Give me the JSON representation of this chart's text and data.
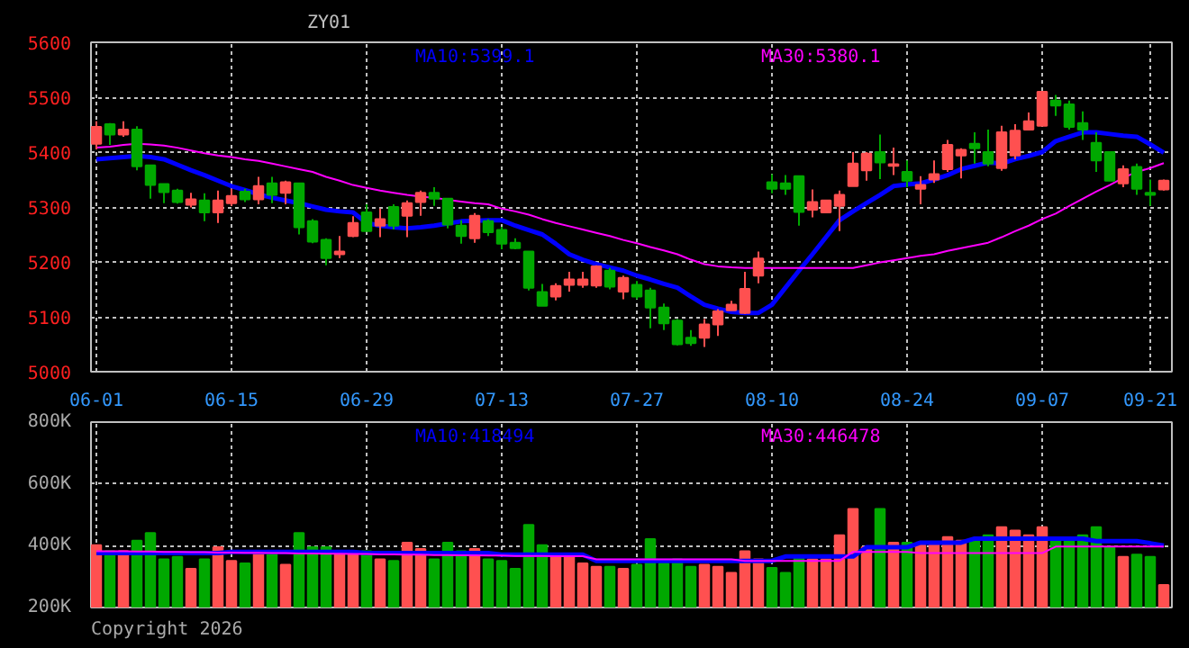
{
  "chart_data": [
    {
      "type": "candlestick",
      "title": "ZY01",
      "categories": [
        "06-01",
        null,
        null,
        null,
        null,
        null,
        null,
        null,
        null,
        null,
        "06-15",
        null,
        null,
        null,
        null,
        null,
        null,
        null,
        null,
        null,
        "06-29",
        null,
        null,
        null,
        null,
        null,
        null,
        null,
        null,
        null,
        "07-13",
        null,
        null,
        null,
        null,
        null,
        null,
        null,
        null,
        null,
        "07-27",
        null,
        null,
        null,
        null,
        null,
        null,
        null,
        null,
        null,
        "08-10",
        null,
        null,
        null,
        null,
        null,
        null,
        null,
        null,
        null,
        "08-24",
        null,
        null,
        null,
        null,
        null,
        null,
        null,
        null,
        null,
        "09-07",
        null,
        null,
        null,
        null,
        null,
        null,
        null,
        "09-21",
        null
      ],
      "ohlc": [
        [
          5415,
          5456,
          5405,
          5446
        ],
        [
          5451,
          5453,
          5413,
          5432
        ],
        [
          5432,
          5456,
          5428,
          5441
        ],
        [
          5441,
          5447,
          5367,
          5374
        ],
        [
          5376,
          5376,
          5315,
          5340
        ],
        [
          5342,
          5342,
          5307,
          5327
        ],
        [
          5330,
          5333,
          5306,
          5309
        ],
        [
          5304,
          5326,
          5299,
          5314
        ],
        [
          5312,
          5325,
          5274,
          5290
        ],
        [
          5290,
          5330,
          5271,
          5312
        ],
        [
          5307,
          5333,
          5302,
          5320
        ],
        [
          5328,
          5333,
          5309,
          5314
        ],
        [
          5314,
          5355,
          5305,
          5338
        ],
        [
          5343,
          5355,
          5307,
          5322
        ],
        [
          5326,
          5348,
          5305,
          5345
        ],
        [
          5343,
          5343,
          5250,
          5263
        ],
        [
          5274,
          5278,
          5234,
          5237
        ],
        [
          5240,
          5243,
          5194,
          5207
        ],
        [
          5214,
          5247,
          5207,
          5219
        ],
        [
          5247,
          5283,
          5245,
          5271
        ],
        [
          5290,
          5305,
          5256,
          5256
        ],
        [
          5266,
          5297,
          5245,
          5278
        ],
        [
          5300,
          5305,
          5259,
          5266
        ],
        [
          5284,
          5312,
          5245,
          5307
        ],
        [
          5309,
          5330,
          5284,
          5326
        ],
        [
          5326,
          5336,
          5302,
          5315
        ],
        [
          5315,
          5315,
          5261,
          5268
        ],
        [
          5266,
          5276,
          5233,
          5247
        ],
        [
          5243,
          5289,
          5235,
          5284
        ],
        [
          5274,
          5278,
          5247,
          5254
        ],
        [
          5258,
          5264,
          5223,
          5233
        ],
        [
          5235,
          5243,
          5223,
          5225
        ],
        [
          5219,
          5219,
          5148,
          5153
        ],
        [
          5145,
          5160,
          5120,
          5120
        ],
        [
          5137,
          5161,
          5130,
          5156
        ],
        [
          5158,
          5182,
          5146,
          5168
        ],
        [
          5158,
          5182,
          5153,
          5168
        ],
        [
          5157,
          5194,
          5153,
          5192
        ],
        [
          5184,
          5189,
          5150,
          5155
        ],
        [
          5146,
          5175,
          5132,
          5171
        ],
        [
          5158,
          5165,
          5132,
          5137
        ],
        [
          5148,
          5153,
          5079,
          5117
        ],
        [
          5117,
          5124,
          5076,
          5088
        ],
        [
          5093,
          5096,
          5048,
          5050
        ],
        [
          5062,
          5076,
          5047,
          5052
        ],
        [
          5062,
          5096,
          5045,
          5086
        ],
        [
          5086,
          5114,
          5065,
          5110
        ],
        [
          5112,
          5129,
          5112,
          5122
        ],
        [
          5107,
          5182,
          5105,
          5151
        ],
        [
          5175,
          5219,
          5161,
          5206
        ],
        [
          5345,
          5360,
          5325,
          5333
        ],
        [
          5343,
          5358,
          5322,
          5333
        ],
        [
          5356,
          5356,
          5266,
          5291
        ],
        [
          5295,
          5332,
          5281,
          5309
        ],
        [
          5290,
          5312,
          5289,
          5312
        ],
        [
          5302,
          5330,
          5256,
          5322
        ],
        [
          5338,
          5400,
          5338,
          5379
        ],
        [
          5367,
          5400,
          5348,
          5397
        ],
        [
          5400,
          5432,
          5351,
          5381
        ],
        [
          5375,
          5408,
          5358,
          5378
        ],
        [
          5364,
          5385,
          5336,
          5348
        ],
        [
          5333,
          5356,
          5305,
          5340
        ],
        [
          5350,
          5385,
          5344,
          5360
        ],
        [
          5369,
          5422,
          5364,
          5413
        ],
        [
          5394,
          5407,
          5352,
          5404
        ],
        [
          5415,
          5436,
          5379,
          5407
        ],
        [
          5400,
          5441,
          5374,
          5379
        ],
        [
          5371,
          5448,
          5366,
          5436
        ],
        [
          5394,
          5451,
          5387,
          5439
        ],
        [
          5441,
          5472,
          5441,
          5456
        ],
        [
          5448,
          5510,
          5448,
          5510
        ],
        [
          5494,
          5504,
          5466,
          5485
        ],
        [
          5487,
          5494,
          5441,
          5446
        ],
        [
          5453,
          5474,
          5422,
          5441
        ],
        [
          5417,
          5436,
          5364,
          5385
        ],
        [
          5400,
          5400,
          5348,
          5348
        ],
        [
          5343,
          5376,
          5336,
          5369
        ],
        [
          5373,
          5379,
          5322,
          5333
        ],
        [
          5326,
          5350,
          5302,
          5322
        ],
        [
          5332,
          5350,
          5330,
          5348
        ]
      ],
      "colors": [
        "#ff5050",
        "#00a800",
        "#ff5050",
        "#00a800",
        "#00a800",
        "#00a800",
        "#00a800",
        "#ff5050",
        "#00a800",
        "#ff5050",
        "#ff5050",
        "#00a800",
        "#ff5050",
        "#00a800",
        "#ff5050",
        "#00a800",
        "#00a800",
        "#00a800",
        "#ff5050",
        "#ff5050",
        "#00a800",
        "#ff5050",
        "#00a800",
        "#ff5050",
        "#ff5050",
        "#00a800",
        "#00a800",
        "#00a800",
        "#ff5050",
        "#00a800",
        "#00a800",
        "#00a800",
        "#00a800",
        "#00a800",
        "#ff5050",
        "#ff5050",
        "#ff5050",
        "#ff5050",
        "#00a800",
        "#ff5050",
        "#00a800",
        "#00a800",
        "#00a800",
        "#00a800",
        "#00a800",
        "#ff5050",
        "#ff5050",
        "#ff5050",
        "#ff5050",
        "#ff5050",
        "#00a800",
        "#00a800",
        "#00a800",
        "#ff5050",
        "#ff5050",
        "#ff5050",
        "#ff5050",
        "#ff5050",
        "#00a800",
        "#ff5050",
        "#00a800",
        "#ff5050",
        "#ff5050",
        "#ff5050",
        "#ff5050",
        "#00a800",
        "#00a800",
        "#ff5050",
        "#ff5050",
        "#ff5050",
        "#ff5050",
        "#00a800",
        "#00a800",
        "#00a800",
        "#00a800",
        "#00a800",
        "#ff5050",
        "#00a800",
        "#00a800",
        "#ff5050"
      ],
      "series": [
        {
          "type": "line",
          "name": "MA10:5399.1",
          "color": "#0000ff",
          "values": [
            5387,
            5389,
            5391,
            5393,
            5391,
            5387,
            5377,
            5367,
            5358,
            5348,
            5338,
            5331,
            5323,
            5317,
            5312,
            5307,
            5301,
            5295,
            5292,
            5290,
            5271,
            5266,
            5263,
            5261,
            5263,
            5266,
            5270,
            5274,
            5275,
            5276,
            5276,
            5266,
            5258,
            5250,
            5233,
            5214,
            5204,
            5196,
            5190,
            5184,
            5175,
            5168,
            5160,
            5153,
            5137,
            5122,
            5115,
            5109,
            5107,
            5107,
            5122,
            5153,
            5184,
            5214,
            5245,
            5276,
            5292,
            5307,
            5322,
            5338,
            5341,
            5343,
            5350,
            5358,
            5369,
            5375,
            5381,
            5379,
            5387,
            5393,
            5400,
            5420,
            5428,
            5436,
            5436,
            5433,
            5430,
            5428,
            5414,
            5399
          ]
        },
        {
          "type": "line",
          "name": "MA30:5380.1",
          "color": "#ff00ff",
          "values": [
            5408,
            5410,
            5413,
            5415,
            5414,
            5412,
            5408,
            5403,
            5398,
            5394,
            5391,
            5387,
            5384,
            5379,
            5374,
            5369,
            5364,
            5355,
            5348,
            5340,
            5335,
            5330,
            5326,
            5322,
            5319,
            5317,
            5313,
            5310,
            5307,
            5305,
            5297,
            5292,
            5286,
            5278,
            5271,
            5265,
            5259,
            5253,
            5247,
            5240,
            5234,
            5227,
            5221,
            5214,
            5204,
            5196,
            5192,
            5190,
            5189,
            5189,
            5189,
            5189,
            5189,
            5189,
            5189,
            5189,
            5189,
            5194,
            5199,
            5203,
            5207,
            5211,
            5214,
            5220,
            5225,
            5230,
            5235,
            5245,
            5256,
            5266,
            5278,
            5288,
            5302,
            5315,
            5328,
            5340,
            5353,
            5364,
            5371,
            5380
          ]
        }
      ],
      "ylim": [
        5000,
        5600
      ],
      "yticks": [
        5000,
        5100,
        5200,
        5300,
        5400,
        5500,
        5600
      ],
      "grid": true
    },
    {
      "type": "bar",
      "categories": [
        null,
        null,
        null,
        null,
        null,
        null,
        null,
        null,
        null,
        null,
        null,
        null,
        null,
        null,
        null,
        null,
        null,
        null,
        null,
        null,
        null,
        null,
        null,
        null,
        null,
        null,
        null,
        null,
        null,
        null,
        null,
        null,
        null,
        null,
        null,
        null,
        null,
        null,
        null,
        null,
        null,
        null,
        null,
        null,
        null,
        null,
        null,
        null,
        null,
        null,
        null,
        null,
        null,
        null,
        null,
        null,
        null,
        null,
        null,
        null,
        null,
        null,
        null,
        null,
        null,
        null,
        null,
        null,
        null,
        null,
        null,
        null,
        null,
        null,
        null,
        null,
        null,
        null,
        null,
        null
      ],
      "values": [
        402000,
        382000,
        382000,
        416000,
        441000,
        356000,
        364000,
        325000,
        356000,
        395000,
        351000,
        343000,
        377000,
        371000,
        338000,
        441000,
        395000,
        395000,
        371000,
        377000,
        382000,
        356000,
        351000,
        410000,
        389000,
        356000,
        410000,
        382000,
        389000,
        356000,
        351000,
        325000,
        467000,
        402000,
        364000,
        364000,
        343000,
        332000,
        332000,
        325000,
        338000,
        421000,
        343000,
        356000,
        332000,
        338000,
        332000,
        312000,
        382000,
        356000,
        328000,
        312000,
        364000,
        356000,
        356000,
        434000,
        519000,
        395000,
        519000,
        410000,
        410000,
        402000,
        408000,
        428000,
        416000,
        416000,
        434000,
        460000,
        449000,
        434000,
        460000,
        423000,
        423000,
        434000,
        460000,
        395000,
        364000,
        371000,
        364000,
        273000
      ],
      "colors": [
        "#ff5050",
        "#00a800",
        "#ff5050",
        "#00a800",
        "#00a800",
        "#00a800",
        "#00a800",
        "#ff5050",
        "#00a800",
        "#ff5050",
        "#ff5050",
        "#00a800",
        "#ff5050",
        "#00a800",
        "#ff5050",
        "#00a800",
        "#00a800",
        "#00a800",
        "#ff5050",
        "#ff5050",
        "#00a800",
        "#ff5050",
        "#00a800",
        "#ff5050",
        "#ff5050",
        "#00a800",
        "#00a800",
        "#00a800",
        "#ff5050",
        "#00a800",
        "#00a800",
        "#00a800",
        "#00a800",
        "#00a800",
        "#ff5050",
        "#ff5050",
        "#ff5050",
        "#ff5050",
        "#00a800",
        "#ff5050",
        "#00a800",
        "#00a800",
        "#00a800",
        "#00a800",
        "#00a800",
        "#ff5050",
        "#ff5050",
        "#ff5050",
        "#ff5050",
        "#ff5050",
        "#00a800",
        "#00a800",
        "#00a800",
        "#ff5050",
        "#ff5050",
        "#ff5050",
        "#ff5050",
        "#ff5050",
        "#00a800",
        "#ff5050",
        "#00a800",
        "#ff5050",
        "#ff5050",
        "#ff5050",
        "#ff5050",
        "#00a800",
        "#00a800",
        "#ff5050",
        "#ff5050",
        "#ff5050",
        "#ff5050",
        "#00a800",
        "#00a800",
        "#00a800",
        "#00a800",
        "#00a800",
        "#ff5050",
        "#00a800",
        "#00a800",
        "#ff5050"
      ],
      "series": [
        {
          "type": "line",
          "name": "MA10:418494",
          "color": "#0000ff",
          "values": [
            376000,
            376000,
            376000,
            376000,
            376000,
            376000,
            376000,
            376000,
            376000,
            376000,
            380000,
            380000,
            380000,
            380000,
            380000,
            380000,
            380000,
            380000,
            380000,
            380000,
            376000,
            376000,
            376000,
            376000,
            376000,
            376000,
            376000,
            376000,
            376000,
            376000,
            371000,
            371000,
            371000,
            371000,
            371000,
            371000,
            371000,
            351000,
            351000,
            351000,
            351000,
            351000,
            351000,
            351000,
            351000,
            351000,
            351000,
            351000,
            351000,
            351000,
            351000,
            365000,
            365000,
            365000,
            365000,
            365000,
            365000,
            395000,
            395000,
            395000,
            395000,
            410000,
            410000,
            410000,
            410000,
            423000,
            423000,
            423000,
            423000,
            423000,
            423000,
            423000,
            423000,
            423000,
            415000,
            415000,
            415000,
            415000,
            408000,
            400000
          ]
        },
        {
          "type": "line",
          "name": "MA30:446478",
          "color": "#ff00ff",
          "values": [
            382000,
            382000,
            382000,
            381000,
            381000,
            380000,
            380000,
            379000,
            379000,
            378000,
            378000,
            377000,
            377000,
            376000,
            376000,
            375000,
            375000,
            374000,
            374000,
            373000,
            373000,
            372000,
            372000,
            371000,
            371000,
            370000,
            370000,
            369000,
            369000,
            368000,
            368000,
            367000,
            367000,
            367000,
            366000,
            366000,
            366000,
            356000,
            356000,
            356000,
            356000,
            356000,
            356000,
            356000,
            356000,
            356000,
            356000,
            356000,
            351000,
            351000,
            351000,
            351000,
            351000,
            351000,
            351000,
            351000,
            380000,
            380000,
            380000,
            380000,
            380000,
            376000,
            376000,
            376000,
            376000,
            376000,
            376000,
            376000,
            376000,
            376000,
            376000,
            397000,
            397000,
            397000,
            397000,
            397000,
            397000,
            397000,
            397000,
            397000
          ]
        }
      ],
      "ylim": [
        200000,
        800000
      ],
      "yticks": [
        {
          "value": 200000,
          "label": "200K"
        },
        {
          "value": 400000,
          "label": "400K"
        },
        {
          "value": 600000,
          "label": "600K"
        },
        {
          "value": 800000,
          "label": "800K"
        }
      ],
      "grid": true,
      "tick_labels": "y",
      "annotations": [
        "Copyright 2026"
      ]
    }
  ]
}
